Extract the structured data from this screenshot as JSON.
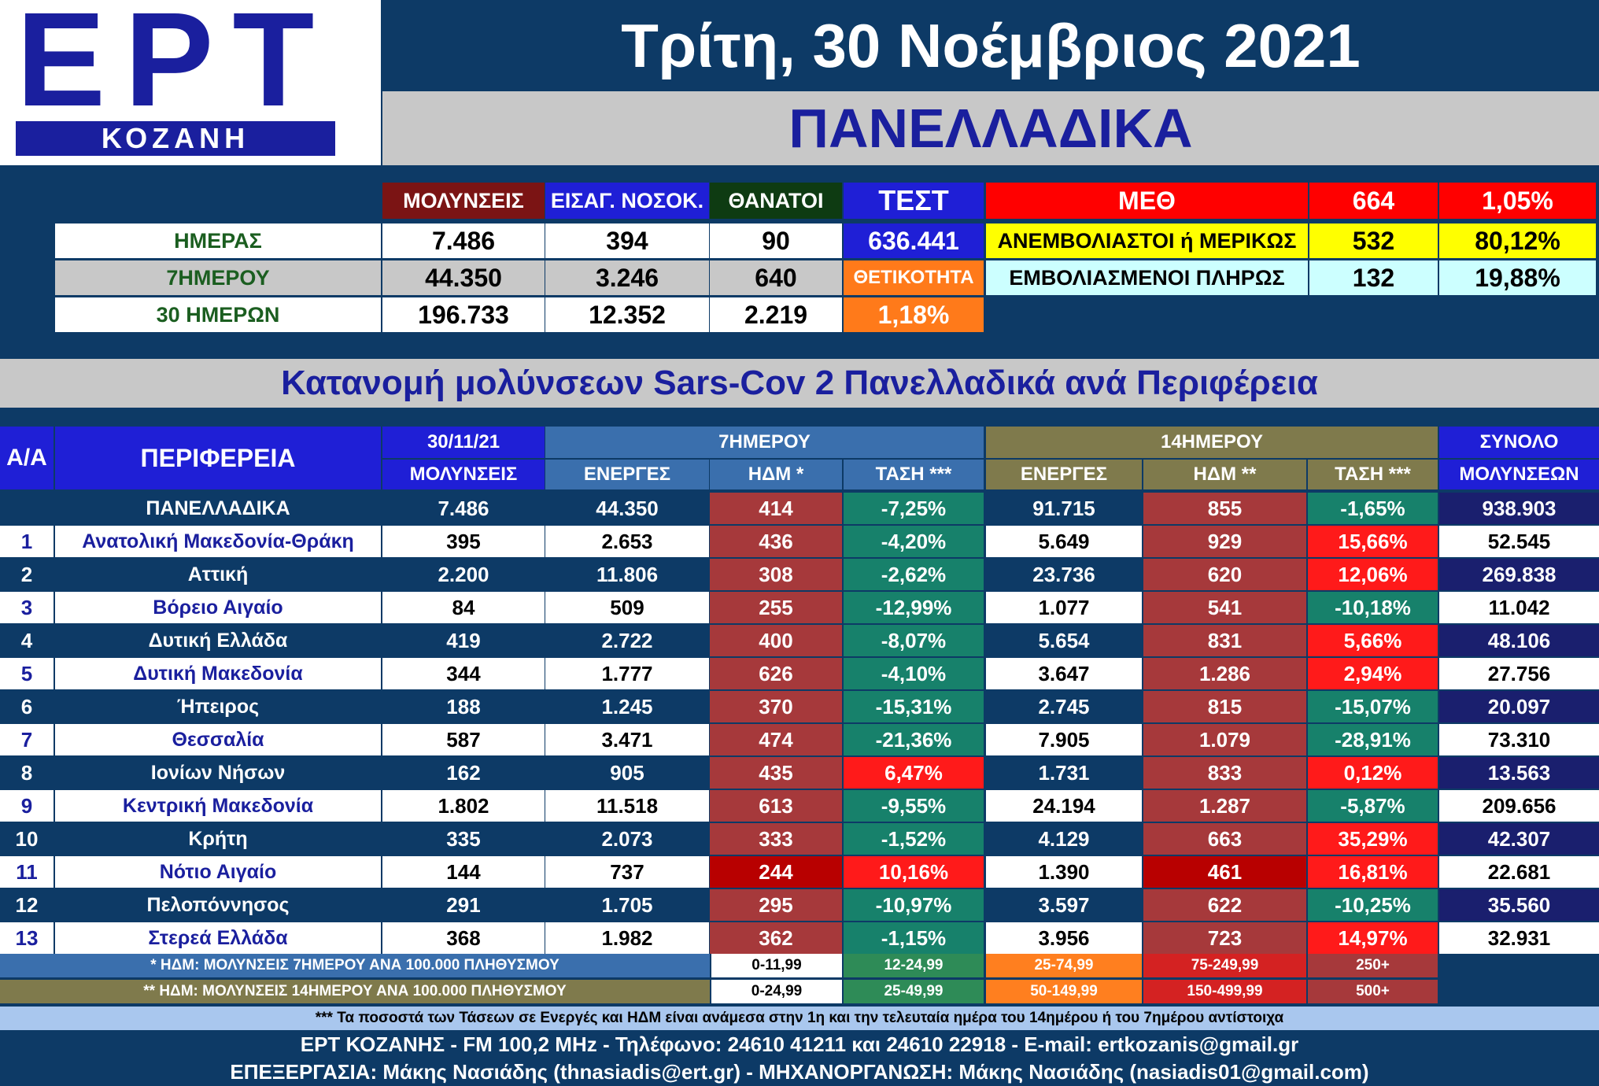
{
  "logo": {
    "word": "ΕΡΤ",
    "sub": "ΚΟΖΑΝΗ"
  },
  "date_title": "Τρίτη, 30 Νοέμβριος 2021",
  "region_title": "ΠΑΝΕΛΛΑΔΙΚΑ",
  "summary": {
    "headers": {
      "infections": "ΜΟΛΥΝΣΕΙΣ",
      "admissions": "ΕΙΣΑΓ. ΝΟΣΟΚ.",
      "deaths": "ΘΑΝΑΤΟΙ",
      "tests": "ΤΕΣΤ"
    },
    "rows": [
      {
        "label": "ΗΜΕΡΑΣ",
        "infections": "7.486",
        "admissions": "394",
        "deaths": "90"
      },
      {
        "label": "7ΗΜΕΡΟΥ",
        "infections": "44.350",
        "admissions": "3.246",
        "deaths": "640"
      },
      {
        "label": "30 ΗΜΕΡΩΝ",
        "infections": "196.733",
        "admissions": "12.352",
        "deaths": "2.219"
      }
    ],
    "tests_value": "636.441",
    "positivity_label": "ΘΕΤΙΚΟΤΗΤΑ",
    "positivity_value": "1,18%",
    "icu": {
      "label": "ΜΕΘ",
      "count": "664",
      "pct": "1,05%",
      "unvax_label": "ΑΝΕΜΒΟΛΙΑΣΤΟΙ ή ΜΕΡΙΚΩΣ",
      "unvax_count": "532",
      "unvax_pct": "80,12%",
      "vax_label": "ΕΜΒΟΛΙΑΣΜΕΝΟΙ ΠΛΗΡΩΣ",
      "vax_count": "132",
      "vax_pct": "19,88%"
    }
  },
  "dist_title": "Κατανομή μολύνσεων Sars-Cov 2 Πανελλαδικά ανά Περιφέρεια",
  "table": {
    "h_aa": "Α/Α",
    "h_region": "ΠΕΡΙΦΕΡΕΙΑ",
    "h_date": "30/11/21",
    "h_infections": "ΜΟΛΥΝΣΕΙΣ",
    "h_7day": "7ΗΜΕΡΟΥ",
    "h_14day": "14ΗΜΕΡΟΥ",
    "h_total_top": "ΣΥΝΟΛΟ",
    "h_total_bottom": "ΜΟΛΥΝΣΕΩΝ",
    "h_active": "ΕΝΕΡΓΕΣ",
    "h_hdm7": "ΗΔΜ *",
    "h_hdm14": "ΗΔΜ **",
    "h_trend": "ΤΑΣΗ ***",
    "rows": [
      {
        "aa": "",
        "region": "ΠΑΝΕΛΛΑΔΙΚΑ",
        "day": "7.486",
        "a7": "44.350",
        "h7": "414",
        "t7": "-7,25%",
        "a14": "91.715",
        "h14": "855",
        "t14": "-1,65%",
        "total": "938.903"
      },
      {
        "aa": "1",
        "region": "Ανατολική Μακεδονία-Θράκη",
        "day": "395",
        "a7": "2.653",
        "h7": "436",
        "t7": "-4,20%",
        "a14": "5.649",
        "h14": "929",
        "t14": "15,66%",
        "total": "52.545"
      },
      {
        "aa": "2",
        "region": "Αττική",
        "day": "2.200",
        "a7": "11.806",
        "h7": "308",
        "t7": "-2,62%",
        "a14": "23.736",
        "h14": "620",
        "t14": "12,06%",
        "total": "269.838"
      },
      {
        "aa": "3",
        "region": "Βόρειο Αιγαίο",
        "day": "84",
        "a7": "509",
        "h7": "255",
        "t7": "-12,99%",
        "a14": "1.077",
        "h14": "541",
        "t14": "-10,18%",
        "total": "11.042"
      },
      {
        "aa": "4",
        "region": "Δυτική Ελλάδα",
        "day": "419",
        "a7": "2.722",
        "h7": "400",
        "t7": "-8,07%",
        "a14": "5.654",
        "h14": "831",
        "t14": "5,66%",
        "total": "48.106"
      },
      {
        "aa": "5",
        "region": "Δυτική Μακεδονία",
        "day": "344",
        "a7": "1.777",
        "h7": "626",
        "t7": "-4,10%",
        "a14": "3.647",
        "h14": "1.286",
        "t14": "2,94%",
        "total": "27.756"
      },
      {
        "aa": "6",
        "region": "Ήπειρος",
        "day": "188",
        "a7": "1.245",
        "h7": "370",
        "t7": "-15,31%",
        "a14": "2.745",
        "h14": "815",
        "t14": "-15,07%",
        "total": "20.097"
      },
      {
        "aa": "7",
        "region": "Θεσσαλία",
        "day": "587",
        "a7": "3.471",
        "h7": "474",
        "t7": "-21,36%",
        "a14": "7.905",
        "h14": "1.079",
        "t14": "-28,91%",
        "total": "73.310"
      },
      {
        "aa": "8",
        "region": "Ιονίων Νήσων",
        "day": "162",
        "a7": "905",
        "h7": "435",
        "t7": "6,47%",
        "a14": "1.731",
        "h14": "833",
        "t14": "0,12%",
        "total": "13.563"
      },
      {
        "aa": "9",
        "region": "Κεντρική Μακεδονία",
        "day": "1.802",
        "a7": "11.518",
        "h7": "613",
        "t7": "-9,55%",
        "a14": "24.194",
        "h14": "1.287",
        "t14": "-5,87%",
        "total": "209.656"
      },
      {
        "aa": "10",
        "region": "Κρήτη",
        "day": "335",
        "a7": "2.073",
        "h7": "333",
        "t7": "-1,52%",
        "a14": "4.129",
        "h14": "663",
        "t14": "35,29%",
        "total": "42.307"
      },
      {
        "aa": "11",
        "region": "Νότιο Αιγαίο",
        "day": "144",
        "a7": "737",
        "h7": "244",
        "t7": "10,16%",
        "a14": "1.390",
        "h14": "461",
        "t14": "16,81%",
        "total": "22.681"
      },
      {
        "aa": "12",
        "region": "Πελοπόννησος",
        "day": "291",
        "a7": "1.705",
        "h7": "295",
        "t7": "-10,97%",
        "a14": "3.597",
        "h14": "622",
        "t14": "-10,25%",
        "total": "35.560"
      },
      {
        "aa": "13",
        "region": "Στερεά Ελλάδα",
        "day": "368",
        "a7": "1.982",
        "h7": "362",
        "t7": "-1,15%",
        "a14": "3.956",
        "h14": "723",
        "t14": "14,97%",
        "total": "32.931"
      }
    ]
  },
  "legend": {
    "note7": "* ΗΔΜ: ΜΟΛΥΝΣΕΙΣ 7ΗΜΕΡΟΥ ΑΝΑ 100.000 ΠΛΗΘΥΣΜΟΥ",
    "note14": "** ΗΔΜ: ΜΟΛΥΝΣΕΙΣ 14ΗΜΕΡΟΥ ΑΝΑ 100.000 ΠΛΗΘΥΣΜΟΥ",
    "ranges7": [
      "0-11,99",
      "12-24,99",
      "25-74,99",
      "75-249,99",
      "250+"
    ],
    "ranges14": [
      "0-24,99",
      "25-49,99",
      "50-149,99",
      "150-499,99",
      "500+"
    ],
    "colors": [
      "#ffffff",
      "#2e8b57",
      "#ff7f1f",
      "#d42222",
      "#a6393b"
    ]
  },
  "footnote": "*** Τα ποσοστά των Τάσεων σε Ενεργές και ΗΔΜ είναι ανάμεσα στην 1η και την τελευταία ημέρα του 14ημέρου ή του 7ημέρου αντίστοιχα",
  "footer": {
    "line1": "ΕΡΤ ΚΟΖΑΝΗΣ - FM 100,2 MHz - Τηλέφωνο:  24610 41211 και 24610 22918 - E-mail: ertkozanis@gmail.gr",
    "line2": "ΕΠΕΞΕΡΓΑΣΙΑ: Μάκης Νασιάδης (thnasiadis@ert.gr) - ΜΗΧΑΝΟΡΓΑΝΩΣΗ: Μάκης Νασιάδης (nasiadis01@gmail.com)"
  }
}
